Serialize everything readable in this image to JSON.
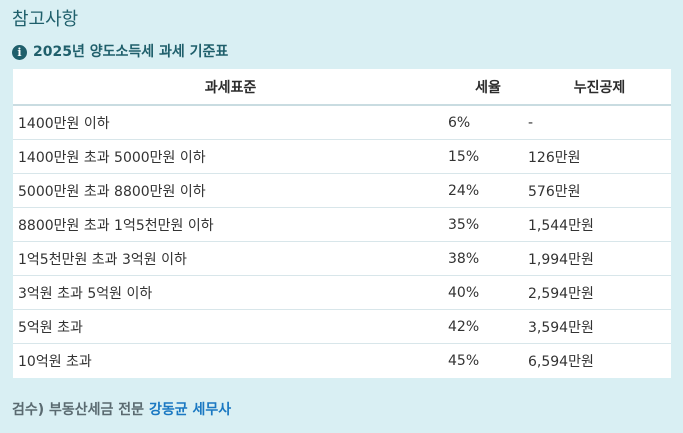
{
  "section_title": "참고사항",
  "subhead": {
    "icon": "info-icon",
    "text": "2025년 양도소득세 과세 기준표"
  },
  "table": {
    "headers": [
      "과세표준",
      "세율",
      "누진공제"
    ],
    "rows": [
      [
        "1400만원 이하",
        "6%",
        "-"
      ],
      [
        "1400만원 초과 5000만원 이하",
        "15%",
        "126만원"
      ],
      [
        "5000만원 초과 8800만원 이하",
        "24%",
        "576만원"
      ],
      [
        "8800만원 초과 1억5천만원 이하",
        "35%",
        "1,544만원"
      ],
      [
        "1억5천만원 초과 3억원 이하",
        "38%",
        "1,994만원"
      ],
      [
        "3억원 초과 5억원 이하",
        "40%",
        "2,594만원"
      ],
      [
        "5억원 초과",
        "42%",
        "3,594만원"
      ],
      [
        "10억원 초과",
        "45%",
        "6,594만원"
      ]
    ]
  },
  "footer": {
    "prefix": "검수) 부동산세금 전문 ",
    "author": "강동균 세무사"
  },
  "colors": {
    "background": "#d9eff3",
    "heading": "#1f5f6b",
    "author_link": "#1a78c2"
  }
}
